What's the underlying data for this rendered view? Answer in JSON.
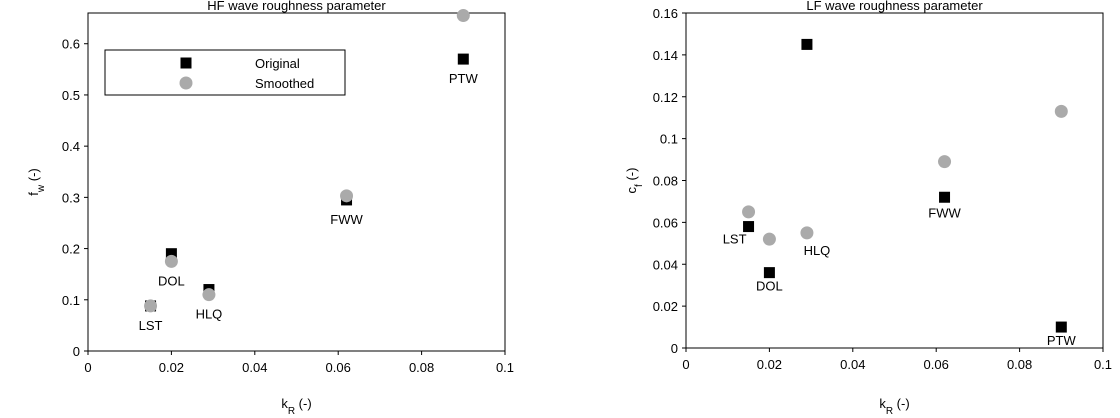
{
  "chart_data": [
    {
      "type": "scatter",
      "title": "HF wave roughness parameter",
      "x_label": {
        "base": "k",
        "sub": "R",
        "rest": " (-)"
      },
      "y_label": {
        "base": "f",
        "sub": "w",
        "rest": " (-)"
      },
      "x": [
        0.015,
        0.02,
        0.029,
        0.062,
        0.09
      ],
      "point_labels": [
        "LST",
        "DOL",
        "HLQ",
        "FWW",
        "PTW"
      ],
      "series": [
        {
          "name": "Original",
          "color": "#000000",
          "marker": "square",
          "values": [
            0.088,
            0.19,
            0.12,
            0.295,
            0.57
          ]
        },
        {
          "name": "Smoothed",
          "color": "#aaaaaa",
          "marker": "circle",
          "values": [
            0.088,
            0.175,
            0.11,
            0.303,
            0.655
          ]
        }
      ],
      "xlim": [
        0,
        0.1
      ],
      "xticks": [
        0,
        0.02,
        0.04,
        0.06,
        0.08,
        0.1
      ],
      "ylim": [
        0,
        0.66
      ],
      "yticks": [
        0,
        0.1,
        0.2,
        0.3,
        0.4,
        0.5,
        0.6
      ],
      "legend": "upper left"
    },
    {
      "type": "scatter",
      "title": "LF wave roughness parameter",
      "x_label": {
        "base": "k",
        "sub": "R",
        "rest": " (-)"
      },
      "y_label": {
        "base": "c",
        "sub": "f",
        "rest": " (-)"
      },
      "x": [
        0.015,
        0.02,
        0.029,
        0.062,
        0.09
      ],
      "point_labels": [
        "LST",
        "DOL",
        "HLQ",
        "FWW",
        "PTW"
      ],
      "series": [
        {
          "name": "Original",
          "color": "#000000",
          "marker": "square",
          "values": [
            0.058,
            0.036,
            0.145,
            0.072,
            0.01
          ]
        },
        {
          "name": "Smoothed",
          "color": "#aaaaaa",
          "marker": "circle",
          "values": [
            0.065,
            0.052,
            0.055,
            0.089,
            0.113
          ]
        }
      ],
      "xlim": [
        0,
        0.1
      ],
      "xticks": [
        0,
        0.02,
        0.04,
        0.06,
        0.08,
        0.1
      ],
      "ylim": [
        0,
        0.16
      ],
      "yticks": [
        0,
        0.02,
        0.04,
        0.06,
        0.08,
        0.1,
        0.12,
        0.14,
        0.16
      ]
    }
  ]
}
